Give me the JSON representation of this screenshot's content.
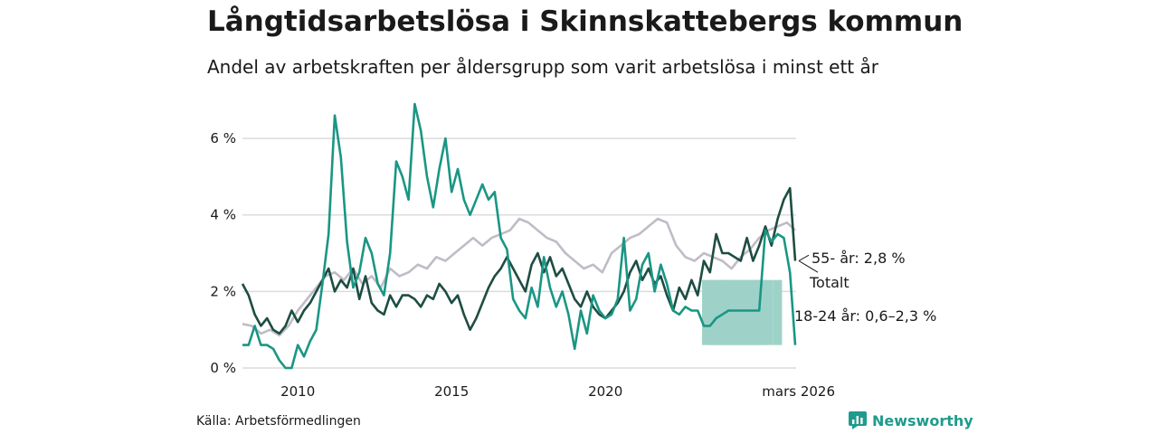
{
  "header": {
    "title": "Långtidsarbetslösa i Skinnskattebergs kommun",
    "subtitle": "Andel av arbetskraften per åldersgrupp som varit arbetslösa i minst ett år"
  },
  "footer": {
    "source": "Källa: Arbetsförmedlingen",
    "brand": "Newsworthy"
  },
  "colors": {
    "total": "#c0bcc7",
    "age55": "#1e4d42",
    "age18_24": "#1a9684",
    "band": "#9ed2c8",
    "grid": "#dcdcdc",
    "brand": "#1f9b8c"
  },
  "chart_data": {
    "type": "line",
    "title": "Långtidsarbetslösa i Skinnskattebergs kommun",
    "subtitle": "Andel av arbetskraften per åldersgrupp som varit arbetslösa i minst ett år",
    "xlabel": "",
    "ylabel": "",
    "x_range": [
      2008.2,
      2026.2
    ],
    "ylim": [
      0,
      6.9
    ],
    "y_ticks": [
      0,
      2,
      4,
      6
    ],
    "y_tick_labels": [
      "0 %",
      "2 %",
      "4 %",
      "6 %"
    ],
    "x_ticks": [
      2010,
      2015,
      2020,
      2026.17
    ],
    "x_tick_labels": [
      "2010",
      "2015",
      "2020",
      "mars 2026"
    ],
    "grid": true,
    "series": [
      {
        "name": "Totalt",
        "end_label": "Totalt",
        "points": [
          [
            2008.2,
            1.15
          ],
          [
            2008.5,
            1.1
          ],
          [
            2008.8,
            0.9
          ],
          [
            2009.1,
            1.0
          ],
          [
            2009.4,
            0.85
          ],
          [
            2009.7,
            1.1
          ],
          [
            2010.0,
            1.5
          ],
          [
            2010.3,
            1.8
          ],
          [
            2010.6,
            2.1
          ],
          [
            2010.9,
            2.4
          ],
          [
            2011.2,
            2.5
          ],
          [
            2011.5,
            2.3
          ],
          [
            2011.8,
            2.6
          ],
          [
            2012.1,
            2.2
          ],
          [
            2012.4,
            2.4
          ],
          [
            2012.7,
            2.1
          ],
          [
            2013.0,
            2.6
          ],
          [
            2013.3,
            2.4
          ],
          [
            2013.6,
            2.5
          ],
          [
            2013.9,
            2.7
          ],
          [
            2014.2,
            2.6
          ],
          [
            2014.5,
            2.9
          ],
          [
            2014.8,
            2.8
          ],
          [
            2015.1,
            3.0
          ],
          [
            2015.4,
            3.2
          ],
          [
            2015.7,
            3.4
          ],
          [
            2016.0,
            3.2
          ],
          [
            2016.3,
            3.4
          ],
          [
            2016.6,
            3.5
          ],
          [
            2016.9,
            3.6
          ],
          [
            2017.2,
            3.9
          ],
          [
            2017.5,
            3.8
          ],
          [
            2017.8,
            3.6
          ],
          [
            2018.1,
            3.4
          ],
          [
            2018.4,
            3.3
          ],
          [
            2018.7,
            3.0
          ],
          [
            2019.0,
            2.8
          ],
          [
            2019.3,
            2.6
          ],
          [
            2019.6,
            2.7
          ],
          [
            2019.9,
            2.5
          ],
          [
            2020.2,
            3.0
          ],
          [
            2020.5,
            3.2
          ],
          [
            2020.8,
            3.4
          ],
          [
            2021.1,
            3.5
          ],
          [
            2021.4,
            3.7
          ],
          [
            2021.7,
            3.9
          ],
          [
            2022.0,
            3.8
          ],
          [
            2022.3,
            3.2
          ],
          [
            2022.6,
            2.9
          ],
          [
            2022.9,
            2.8
          ],
          [
            2023.2,
            3.0
          ],
          [
            2023.5,
            2.9
          ],
          [
            2023.8,
            2.8
          ],
          [
            2024.1,
            2.6
          ],
          [
            2024.4,
            2.9
          ],
          [
            2024.7,
            3.1
          ],
          [
            2025.0,
            3.4
          ],
          [
            2025.3,
            3.6
          ],
          [
            2025.6,
            3.7
          ],
          [
            2025.9,
            3.8
          ],
          [
            2026.17,
            3.6
          ]
        ]
      },
      {
        "name": "55- år",
        "end_label": "55- år: 2,8 %",
        "last_value": 2.8,
        "points": [
          [
            2008.2,
            2.2
          ],
          [
            2008.4,
            1.9
          ],
          [
            2008.6,
            1.4
          ],
          [
            2008.8,
            1.1
          ],
          [
            2009.0,
            1.3
          ],
          [
            2009.2,
            1.0
          ],
          [
            2009.4,
            0.9
          ],
          [
            2009.6,
            1.1
          ],
          [
            2009.8,
            1.5
          ],
          [
            2010.0,
            1.2
          ],
          [
            2010.2,
            1.5
          ],
          [
            2010.4,
            1.7
          ],
          [
            2010.6,
            2.0
          ],
          [
            2010.8,
            2.3
          ],
          [
            2011.0,
            2.6
          ],
          [
            2011.2,
            2.0
          ],
          [
            2011.4,
            2.3
          ],
          [
            2011.6,
            2.1
          ],
          [
            2011.8,
            2.6
          ],
          [
            2012.0,
            1.8
          ],
          [
            2012.2,
            2.4
          ],
          [
            2012.4,
            1.7
          ],
          [
            2012.6,
            1.5
          ],
          [
            2012.8,
            1.4
          ],
          [
            2013.0,
            1.9
          ],
          [
            2013.2,
            1.6
          ],
          [
            2013.4,
            1.9
          ],
          [
            2013.6,
            1.9
          ],
          [
            2013.8,
            1.8
          ],
          [
            2014.0,
            1.6
          ],
          [
            2014.2,
            1.9
          ],
          [
            2014.4,
            1.8
          ],
          [
            2014.6,
            2.2
          ],
          [
            2014.8,
            2.0
          ],
          [
            2015.0,
            1.7
          ],
          [
            2015.2,
            1.9
          ],
          [
            2015.4,
            1.4
          ],
          [
            2015.6,
            1.0
          ],
          [
            2015.8,
            1.3
          ],
          [
            2016.0,
            1.7
          ],
          [
            2016.2,
            2.1
          ],
          [
            2016.4,
            2.4
          ],
          [
            2016.6,
            2.6
          ],
          [
            2016.8,
            2.9
          ],
          [
            2017.0,
            2.6
          ],
          [
            2017.2,
            2.3
          ],
          [
            2017.4,
            2.0
          ],
          [
            2017.6,
            2.7
          ],
          [
            2017.8,
            3.0
          ],
          [
            2018.0,
            2.5
          ],
          [
            2018.2,
            2.9
          ],
          [
            2018.4,
            2.4
          ],
          [
            2018.6,
            2.6
          ],
          [
            2018.8,
            2.2
          ],
          [
            2019.0,
            1.8
          ],
          [
            2019.2,
            1.6
          ],
          [
            2019.4,
            2.0
          ],
          [
            2019.6,
            1.6
          ],
          [
            2019.8,
            1.4
          ],
          [
            2020.0,
            1.3
          ],
          [
            2020.2,
            1.5
          ],
          [
            2020.4,
            1.7
          ],
          [
            2020.6,
            2.0
          ],
          [
            2020.8,
            2.5
          ],
          [
            2021.0,
            2.8
          ],
          [
            2021.2,
            2.3
          ],
          [
            2021.4,
            2.6
          ],
          [
            2021.6,
            2.2
          ],
          [
            2021.8,
            2.4
          ],
          [
            2022.0,
            1.9
          ],
          [
            2022.2,
            1.5
          ],
          [
            2022.4,
            2.1
          ],
          [
            2022.6,
            1.8
          ],
          [
            2022.8,
            2.3
          ],
          [
            2023.0,
            1.9
          ],
          [
            2023.2,
            2.8
          ],
          [
            2023.4,
            2.5
          ],
          [
            2023.6,
            3.5
          ],
          [
            2023.8,
            3.0
          ],
          [
            2024.0,
            3.0
          ],
          [
            2024.2,
            2.9
          ],
          [
            2024.4,
            2.8
          ],
          [
            2024.6,
            3.4
          ],
          [
            2024.8,
            2.8
          ],
          [
            2025.0,
            3.2
          ],
          [
            2025.2,
            3.7
          ],
          [
            2025.4,
            3.2
          ],
          [
            2025.6,
            3.9
          ],
          [
            2025.8,
            4.4
          ],
          [
            2026.0,
            4.7
          ],
          [
            2026.17,
            2.8
          ]
        ]
      },
      {
        "name": "18-24 år",
        "end_label": "18-24 år: 0,6–2,3 %",
        "last_value_range": [
          0.6,
          2.3
        ],
        "points": [
          [
            2008.2,
            0.6
          ],
          [
            2008.4,
            0.6
          ],
          [
            2008.6,
            1.1
          ],
          [
            2008.8,
            0.6
          ],
          [
            2009.0,
            0.6
          ],
          [
            2009.2,
            0.5
          ],
          [
            2009.4,
            0.2
          ],
          [
            2009.6,
            0.0
          ],
          [
            2009.8,
            0.0
          ],
          [
            2010.0,
            0.6
          ],
          [
            2010.2,
            0.3
          ],
          [
            2010.4,
            0.7
          ],
          [
            2010.6,
            1.0
          ],
          [
            2010.8,
            2.2
          ],
          [
            2011.0,
            3.5
          ],
          [
            2011.2,
            6.6
          ],
          [
            2011.4,
            5.5
          ],
          [
            2011.6,
            3.3
          ],
          [
            2011.8,
            2.1
          ],
          [
            2012.0,
            2.5
          ],
          [
            2012.2,
            3.4
          ],
          [
            2012.4,
            3.0
          ],
          [
            2012.6,
            2.2
          ],
          [
            2012.8,
            1.9
          ],
          [
            2013.0,
            3.0
          ],
          [
            2013.2,
            5.4
          ],
          [
            2013.4,
            5.0
          ],
          [
            2013.6,
            4.4
          ],
          [
            2013.8,
            6.9
          ],
          [
            2014.0,
            6.2
          ],
          [
            2014.2,
            5.0
          ],
          [
            2014.4,
            4.2
          ],
          [
            2014.6,
            5.2
          ],
          [
            2014.8,
            6.0
          ],
          [
            2015.0,
            4.6
          ],
          [
            2015.2,
            5.2
          ],
          [
            2015.4,
            4.4
          ],
          [
            2015.6,
            4.0
          ],
          [
            2015.8,
            4.4
          ],
          [
            2016.0,
            4.8
          ],
          [
            2016.2,
            4.4
          ],
          [
            2016.4,
            4.6
          ],
          [
            2016.6,
            3.4
          ],
          [
            2016.8,
            3.1
          ],
          [
            2017.0,
            1.8
          ],
          [
            2017.2,
            1.5
          ],
          [
            2017.4,
            1.3
          ],
          [
            2017.6,
            2.1
          ],
          [
            2017.8,
            1.6
          ],
          [
            2018.0,
            2.9
          ],
          [
            2018.2,
            2.1
          ],
          [
            2018.4,
            1.6
          ],
          [
            2018.6,
            2.0
          ],
          [
            2018.8,
            1.4
          ],
          [
            2019.0,
            0.5
          ],
          [
            2019.2,
            1.5
          ],
          [
            2019.4,
            0.9
          ],
          [
            2019.6,
            1.9
          ],
          [
            2019.8,
            1.5
          ],
          [
            2020.0,
            1.3
          ],
          [
            2020.2,
            1.4
          ],
          [
            2020.4,
            1.8
          ],
          [
            2020.6,
            3.4
          ],
          [
            2020.8,
            1.5
          ],
          [
            2021.0,
            1.8
          ],
          [
            2021.2,
            2.7
          ],
          [
            2021.4,
            3.0
          ],
          [
            2021.6,
            2.0
          ],
          [
            2021.8,
            2.7
          ],
          [
            2022.0,
            2.2
          ],
          [
            2022.2,
            1.5
          ],
          [
            2022.4,
            1.4
          ],
          [
            2022.6,
            1.6
          ],
          [
            2022.8,
            1.5
          ],
          [
            2023.0,
            1.5
          ],
          [
            2023.2,
            1.1
          ],
          [
            2023.4,
            1.1
          ],
          [
            2023.6,
            1.3
          ],
          [
            2023.8,
            1.4
          ],
          [
            2024.0,
            1.5
          ],
          [
            2024.2,
            1.5
          ],
          [
            2024.4,
            1.5
          ],
          [
            2024.6,
            1.5
          ],
          [
            2024.8,
            1.5
          ],
          [
            2025.0,
            1.5
          ],
          [
            2025.2,
            3.6
          ],
          [
            2025.4,
            3.3
          ],
          [
            2025.6,
            3.5
          ],
          [
            2025.8,
            3.4
          ],
          [
            2026.0,
            2.5
          ],
          [
            2026.17,
            0.6
          ]
        ]
      }
    ],
    "uncertainty_band": {
      "series": "18-24 år",
      "points": [
        [
          2023.2,
          0.6,
          2.3
        ],
        [
          2023.4,
          0.6,
          2.3
        ],
        [
          2023.6,
          0.6,
          2.3
        ],
        [
          2023.8,
          0.6,
          2.3
        ],
        [
          2024.0,
          0.6,
          2.3
        ],
        [
          2024.2,
          0.6,
          2.3
        ],
        [
          2024.4,
          0.6,
          2.3
        ],
        [
          2024.6,
          0.6,
          2.3
        ],
        [
          2024.8,
          0.6,
          2.3
        ],
        [
          2025.0,
          0.6,
          2.3
        ]
      ]
    }
  }
}
